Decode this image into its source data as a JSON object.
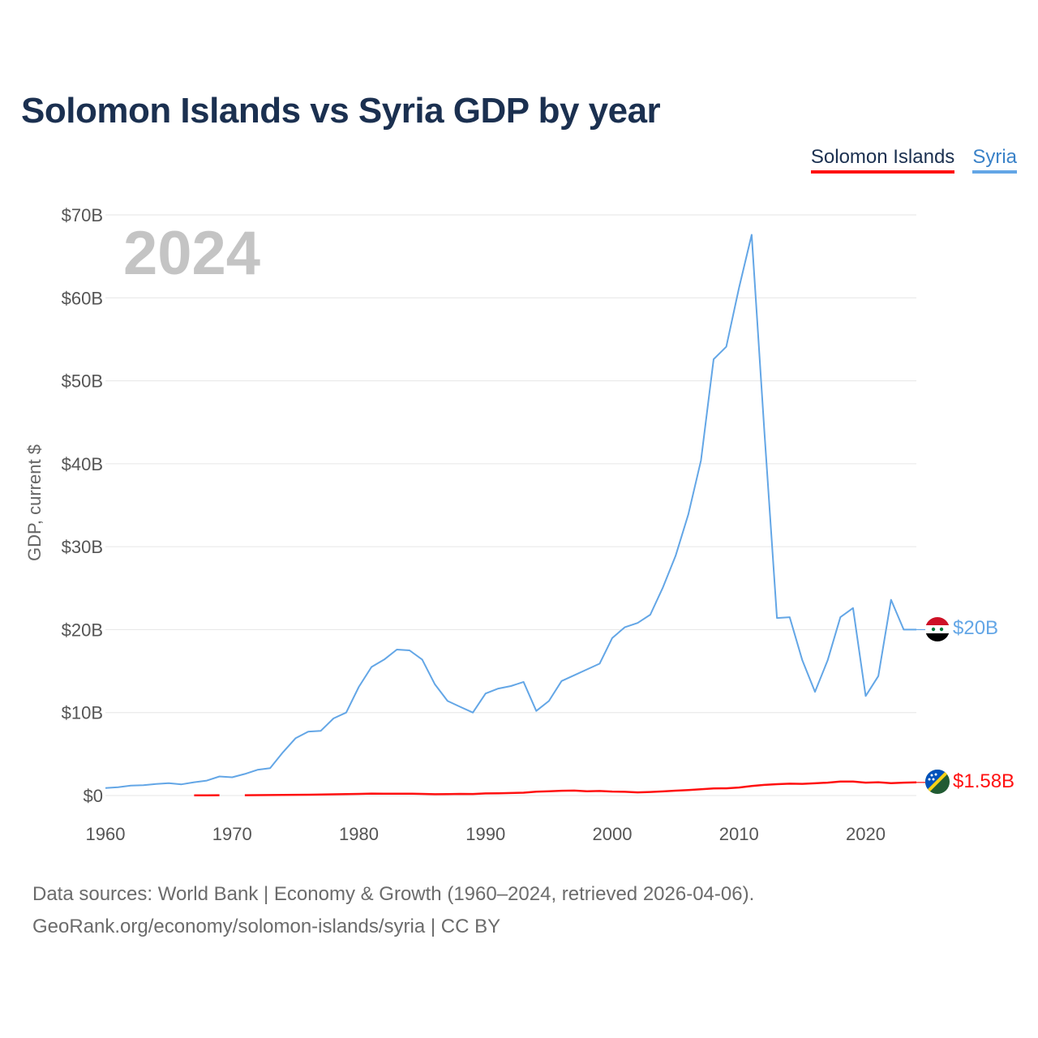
{
  "header": {
    "title": "Solomon Islands vs Syria GDP by year"
  },
  "legend": {
    "solomon": "Solomon Islands",
    "syria": "Syria"
  },
  "footer": {
    "line1": "Data sources: World Bank | Economy & Growth (1960–2024, retrieved 2026-04-06).",
    "line2": "GeoRank.org/economy/solomon-islands/syria | CC BY"
  },
  "colors": {
    "solomon": "#ff1010",
    "syria": "#63a6e6",
    "grid": "#e6e6e6"
  },
  "chart_data": {
    "type": "line",
    "title": "Solomon Islands vs Syria GDP by year",
    "ylabel": "GDP, current $",
    "xlabel": "",
    "year_display": "2024",
    "xlim": [
      1960,
      2024
    ],
    "ylim": [
      0,
      70
    ],
    "unit": "billion USD",
    "x_ticks": [
      1960,
      1970,
      1980,
      1990,
      2000,
      2010,
      2020
    ],
    "y_ticks": [
      {
        "value": 0,
        "label": "$0"
      },
      {
        "value": 10,
        "label": "$10B"
      },
      {
        "value": 20,
        "label": "$20B"
      },
      {
        "value": 30,
        "label": "$30B"
      },
      {
        "value": 40,
        "label": "$40B"
      },
      {
        "value": 50,
        "label": "$50B"
      },
      {
        "value": 60,
        "label": "$60B"
      },
      {
        "value": 70,
        "label": "$70B"
      }
    ],
    "series": [
      {
        "name": "Syria",
        "key": "syria",
        "end_label": "$20B",
        "points": [
          [
            1960,
            0.9
          ],
          [
            1961,
            1.0
          ],
          [
            1962,
            1.2
          ],
          [
            1963,
            1.25
          ],
          [
            1964,
            1.4
          ],
          [
            1965,
            1.5
          ],
          [
            1966,
            1.35
          ],
          [
            1967,
            1.6
          ],
          [
            1968,
            1.8
          ],
          [
            1969,
            2.3
          ],
          [
            1970,
            2.2
          ],
          [
            1971,
            2.6
          ],
          [
            1972,
            3.1
          ],
          [
            1973,
            3.3
          ],
          [
            1974,
            5.2
          ],
          [
            1975,
            6.9
          ],
          [
            1976,
            7.7
          ],
          [
            1977,
            7.8
          ],
          [
            1978,
            9.3
          ],
          [
            1979,
            10.0
          ],
          [
            1980,
            13.1
          ],
          [
            1981,
            15.5
          ],
          [
            1982,
            16.4
          ],
          [
            1983,
            17.6
          ],
          [
            1984,
            17.5
          ],
          [
            1985,
            16.4
          ],
          [
            1986,
            13.4
          ],
          [
            1987,
            11.4
          ],
          [
            1988,
            10.7
          ],
          [
            1989,
            10.0
          ],
          [
            1990,
            12.3
          ],
          [
            1991,
            12.9
          ],
          [
            1992,
            13.2
          ],
          [
            1993,
            13.7
          ],
          [
            1994,
            10.2
          ],
          [
            1995,
            11.4
          ],
          [
            1996,
            13.8
          ],
          [
            1997,
            14.5
          ],
          [
            1998,
            15.2
          ],
          [
            1999,
            15.9
          ],
          [
            2000,
            19.0
          ],
          [
            2001,
            20.3
          ],
          [
            2002,
            20.8
          ],
          [
            2003,
            21.8
          ],
          [
            2004,
            25.1
          ],
          [
            2005,
            28.9
          ],
          [
            2006,
            33.9
          ],
          [
            2007,
            40.4
          ],
          [
            2008,
            52.6
          ],
          [
            2009,
            54.1
          ],
          [
            2010,
            61.2
          ],
          [
            2011,
            67.6
          ],
          [
            2012,
            44.0
          ],
          [
            2013,
            21.4
          ],
          [
            2014,
            21.5
          ],
          [
            2015,
            16.3
          ],
          [
            2016,
            12.5
          ],
          [
            2017,
            16.3
          ],
          [
            2018,
            21.5
          ],
          [
            2019,
            22.6
          ],
          [
            2020,
            12.0
          ],
          [
            2021,
            14.4
          ],
          [
            2022,
            23.6
          ],
          [
            2023,
            20.0
          ],
          [
            2024,
            20.0
          ]
        ]
      },
      {
        "name": "Solomon Islands",
        "key": "solomon",
        "end_label": "$1.58B",
        "points": [
          [
            1967,
            0.03
          ],
          [
            1968,
            0.03
          ],
          [
            1969,
            0.04
          ],
          [
            1971,
            0.04
          ],
          [
            1972,
            0.05
          ],
          [
            1973,
            0.06
          ],
          [
            1974,
            0.08
          ],
          [
            1975,
            0.09
          ],
          [
            1976,
            0.1
          ],
          [
            1977,
            0.12
          ],
          [
            1978,
            0.15
          ],
          [
            1979,
            0.17
          ],
          [
            1980,
            0.2
          ],
          [
            1981,
            0.23
          ],
          [
            1982,
            0.22
          ],
          [
            1983,
            0.22
          ],
          [
            1984,
            0.22
          ],
          [
            1985,
            0.2
          ],
          [
            1986,
            0.16
          ],
          [
            1987,
            0.17
          ],
          [
            1988,
            0.2
          ],
          [
            1989,
            0.19
          ],
          [
            1990,
            0.25
          ],
          [
            1991,
            0.27
          ],
          [
            1992,
            0.3
          ],
          [
            1993,
            0.34
          ],
          [
            1994,
            0.46
          ],
          [
            1995,
            0.52
          ],
          [
            1996,
            0.58
          ],
          [
            1997,
            0.6
          ],
          [
            1998,
            0.52
          ],
          [
            1999,
            0.55
          ],
          [
            2000,
            0.48
          ],
          [
            2001,
            0.45
          ],
          [
            2002,
            0.38
          ],
          [
            2003,
            0.43
          ],
          [
            2004,
            0.5
          ],
          [
            2005,
            0.59
          ],
          [
            2006,
            0.66
          ],
          [
            2007,
            0.76
          ],
          [
            2008,
            0.86
          ],
          [
            2009,
            0.87
          ],
          [
            2010,
            0.97
          ],
          [
            2011,
            1.14
          ],
          [
            2012,
            1.28
          ],
          [
            2013,
            1.37
          ],
          [
            2014,
            1.43
          ],
          [
            2015,
            1.41
          ],
          [
            2016,
            1.48
          ],
          [
            2017,
            1.55
          ],
          [
            2018,
            1.69
          ],
          [
            2019,
            1.69
          ],
          [
            2020,
            1.55
          ],
          [
            2021,
            1.6
          ],
          [
            2022,
            1.5
          ],
          [
            2023,
            1.55
          ],
          [
            2024,
            1.58
          ]
        ]
      }
    ]
  }
}
